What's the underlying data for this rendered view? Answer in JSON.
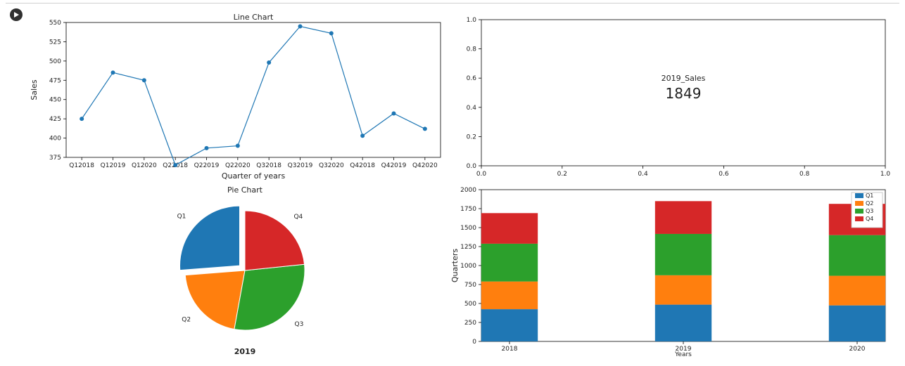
{
  "line_chart": {
    "type": "line",
    "title": "Line Chart",
    "xlabel": "Quarter of years",
    "ylabel": "Sales",
    "categories": [
      "Q12018",
      "Q12019",
      "Q12020",
      "Q22018",
      "Q22019",
      "Q22020",
      "Q32018",
      "Q32019",
      "Q32020",
      "Q42018",
      "Q42019",
      "Q42020"
    ],
    "values": [
      425,
      485,
      475,
      365,
      387,
      390,
      498,
      545,
      536,
      403,
      432,
      412
    ],
    "yticks": [
      375,
      400,
      425,
      450,
      475,
      500,
      525,
      550
    ],
    "line_color": "#1f77b4",
    "marker": "circle",
    "marker_size": 3,
    "line_width": 1.2,
    "background_color": "#ffffff",
    "border_color": "#000000"
  },
  "indicator": {
    "type": "text",
    "xlim": [
      0.0,
      1.0
    ],
    "ylim": [
      0.0,
      1.0
    ],
    "xticks": [
      0.0,
      0.2,
      0.4,
      0.6,
      0.8,
      1.0
    ],
    "yticks": [
      0.0,
      0.2,
      0.4,
      0.6,
      0.8,
      1.0
    ],
    "label": "2019_Sales",
    "value": "1849",
    "label_fontsize": 11,
    "value_fontsize": 20,
    "text_color": "#222222",
    "border_color": "#000000"
  },
  "pie_chart": {
    "type": "pie",
    "title": "Pie Chart",
    "subtitle": "2019",
    "slices": [
      {
        "label": "Q1",
        "value": 485,
        "color": "#1f77b4",
        "explode": 0.12
      },
      {
        "label": "Q2",
        "value": 387,
        "color": "#ff7f0e",
        "explode": 0
      },
      {
        "label": "Q3",
        "value": 545,
        "color": "#2ca02c",
        "explode": 0
      },
      {
        "label": "Q4",
        "value": 432,
        "color": "#d62728",
        "explode": 0
      }
    ],
    "edge_color": "#ffffff",
    "start_angle": 90,
    "direction": "ccw"
  },
  "stacked_bar": {
    "type": "stacked_bar",
    "xlabel": "Years",
    "ylabel": "Quarters",
    "categories": [
      "2018",
      "2019",
      "2020"
    ],
    "series": [
      {
        "label": "Q1",
        "color": "#1f77b4",
        "values": [
          425,
          485,
          475
        ]
      },
      {
        "label": "Q2",
        "color": "#ff7f0e",
        "values": [
          365,
          387,
          390
        ]
      },
      {
        "label": "Q3",
        "color": "#2ca02c",
        "values": [
          498,
          545,
          536
        ]
      },
      {
        "label": "Q4",
        "color": "#d62728",
        "values": [
          403,
          432,
          412
        ]
      }
    ],
    "yticks": [
      0,
      250,
      500,
      750,
      1000,
      1250,
      1500,
      1750,
      2000
    ],
    "bar_width": 0.14,
    "border_color": "#000000",
    "legend_position": "top-right"
  }
}
